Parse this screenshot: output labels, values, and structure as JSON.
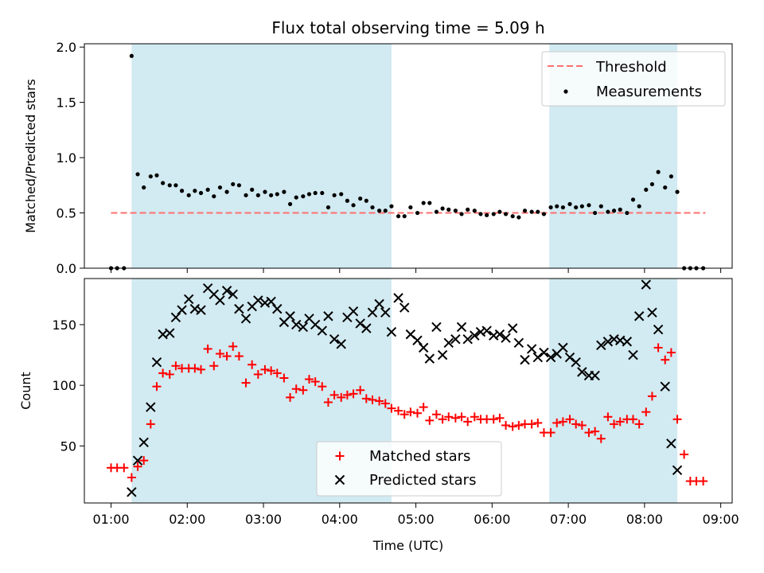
{
  "title": "Flux total observing time = 5.09 h",
  "x_axis": {
    "label": "Time (UTC)",
    "ticks": [
      "01:00",
      "02:00",
      "03:00",
      "04:00",
      "05:00",
      "06:00",
      "07:00",
      "08:00",
      "09:00"
    ],
    "range_hours": [
      0.65,
      9.15
    ]
  },
  "colors": {
    "shade": "#add8e6",
    "threshold": "#ff6f6f",
    "measurements": "#000000",
    "matched": "#ff0000",
    "predicted": "#000000"
  },
  "chart_data": [
    {
      "type": "scatter",
      "ylabel": "Matched/Predicted stars",
      "ylim": [
        0,
        2.03
      ],
      "yticks": [
        "0.0",
        "0.5",
        "1.0",
        "1.5",
        "2.0"
      ],
      "shaded_intervals_hours": [
        [
          1.27,
          4.68
        ],
        [
          6.75,
          8.43
        ]
      ],
      "threshold": {
        "name": "Threshold",
        "value": 0.5,
        "x_range_hours": [
          1.0,
          8.8
        ]
      },
      "legend": {
        "position": "top-right",
        "entries": [
          "Threshold",
          "Measurements"
        ]
      },
      "series": [
        {
          "name": "Measurements",
          "x_hours": [
            1.0,
            1.08,
            1.17,
            1.27,
            1.35,
            1.43,
            1.52,
            1.6,
            1.68,
            1.77,
            1.85,
            1.93,
            2.02,
            2.1,
            2.18,
            2.27,
            2.35,
            2.43,
            2.52,
            2.6,
            2.68,
            2.77,
            2.85,
            2.93,
            3.02,
            3.1,
            3.18,
            3.27,
            3.35,
            3.43,
            3.52,
            3.6,
            3.68,
            3.77,
            3.85,
            3.93,
            4.02,
            4.1,
            4.18,
            4.27,
            4.35,
            4.43,
            4.52,
            4.6,
            4.68,
            4.77,
            4.85,
            4.93,
            5.02,
            5.1,
            5.18,
            5.27,
            5.35,
            5.43,
            5.52,
            5.6,
            5.68,
            5.77,
            5.85,
            5.93,
            6.02,
            6.1,
            6.18,
            6.27,
            6.35,
            6.43,
            6.52,
            6.6,
            6.68,
            6.77,
            6.85,
            6.93,
            7.02,
            7.1,
            7.18,
            7.27,
            7.35,
            7.43,
            7.52,
            7.6,
            7.68,
            7.77,
            7.85,
            7.93,
            8.02,
            8.1,
            8.18,
            8.27,
            8.35,
            8.43,
            8.52,
            8.6,
            8.68,
            8.77
          ],
          "values": [
            0.0,
            0.0,
            0.0,
            1.92,
            0.85,
            0.73,
            0.83,
            0.84,
            0.77,
            0.75,
            0.75,
            0.7,
            0.66,
            0.7,
            0.68,
            0.71,
            0.65,
            0.73,
            0.69,
            0.76,
            0.75,
            0.66,
            0.71,
            0.66,
            0.69,
            0.66,
            0.67,
            0.69,
            0.58,
            0.64,
            0.65,
            0.67,
            0.68,
            0.68,
            0.55,
            0.66,
            0.67,
            0.61,
            0.57,
            0.63,
            0.61,
            0.55,
            0.52,
            0.52,
            0.56,
            0.47,
            0.47,
            0.55,
            0.5,
            0.59,
            0.59,
            0.51,
            0.54,
            0.53,
            0.52,
            0.49,
            0.53,
            0.52,
            0.49,
            0.48,
            0.49,
            0.51,
            0.49,
            0.47,
            0.46,
            0.52,
            0.51,
            0.51,
            0.49,
            0.55,
            0.56,
            0.55,
            0.58,
            0.55,
            0.56,
            0.57,
            0.5,
            0.56,
            0.51,
            0.52,
            0.53,
            0.5,
            0.62,
            0.56,
            0.71,
            0.76,
            0.87,
            0.73,
            0.83,
            0.69,
            0.0,
            0.0,
            0.0,
            0.0
          ]
        }
      ]
    },
    {
      "type": "scatter",
      "ylabel": "Count",
      "ylim": [
        3,
        188
      ],
      "yticks": [
        "50",
        "100",
        "150"
      ],
      "shaded_intervals_hours": [
        [
          1.27,
          4.68
        ],
        [
          6.75,
          8.43
        ]
      ],
      "legend": {
        "position": "lower-center",
        "entries": [
          "Matched stars",
          "Predicted stars"
        ]
      },
      "series": [
        {
          "name": "Matched stars",
          "marker": "plus",
          "x_hours": [
            1.0,
            1.08,
            1.17,
            1.27,
            1.35,
            1.43,
            1.52,
            1.6,
            1.68,
            1.77,
            1.85,
            1.93,
            2.02,
            2.1,
            2.18,
            2.27,
            2.35,
            2.43,
            2.52,
            2.6,
            2.68,
            2.77,
            2.85,
            2.93,
            3.02,
            3.1,
            3.18,
            3.27,
            3.35,
            3.43,
            3.52,
            3.6,
            3.68,
            3.77,
            3.85,
            3.93,
            4.02,
            4.1,
            4.18,
            4.27,
            4.35,
            4.43,
            4.52,
            4.6,
            4.68,
            4.77,
            4.85,
            4.93,
            5.02,
            5.1,
            5.18,
            5.27,
            5.35,
            5.43,
            5.52,
            5.6,
            5.68,
            5.77,
            5.85,
            5.93,
            6.02,
            6.1,
            6.18,
            6.27,
            6.35,
            6.43,
            6.52,
            6.6,
            6.68,
            6.77,
            6.85,
            6.93,
            7.02,
            7.1,
            7.18,
            7.27,
            7.35,
            7.43,
            7.52,
            7.6,
            7.68,
            7.77,
            7.85,
            7.93,
            8.02,
            8.1,
            8.18,
            8.27,
            8.35,
            8.43,
            8.52,
            8.6,
            8.68,
            8.77
          ],
          "values": [
            32,
            32,
            32,
            24,
            33,
            38,
            68,
            99,
            110,
            109,
            116,
            114,
            114,
            114,
            113,
            130,
            116,
            126,
            124,
            132,
            124,
            102,
            117,
            109,
            113,
            112,
            110,
            106,
            90,
            97,
            96,
            105,
            103,
            99,
            86,
            92,
            90,
            92,
            93,
            96,
            89,
            88,
            87,
            85,
            81,
            79,
            76,
            78,
            77,
            82,
            71,
            76,
            72,
            74,
            73,
            74,
            70,
            74,
            72,
            72,
            72,
            73,
            67,
            66,
            67,
            68,
            68,
            69,
            61,
            61,
            69,
            70,
            72,
            68,
            67,
            61,
            62,
            56,
            74,
            68,
            70,
            72,
            72,
            68,
            78,
            91,
            131,
            121,
            127,
            72,
            43,
            21,
            21,
            21
          ],
          "note_values": "counts"
        },
        {
          "name": "Predicted stars",
          "marker": "x",
          "x_hours": [
            1.27,
            1.35,
            1.43,
            1.52,
            1.6,
            1.68,
            1.77,
            1.85,
            1.93,
            2.02,
            2.1,
            2.18,
            2.27,
            2.35,
            2.43,
            2.52,
            2.6,
            2.68,
            2.77,
            2.85,
            2.93,
            3.02,
            3.1,
            3.18,
            3.27,
            3.35,
            3.43,
            3.52,
            3.6,
            3.68,
            3.77,
            3.85,
            3.93,
            4.02,
            4.1,
            4.18,
            4.27,
            4.35,
            4.43,
            4.52,
            4.6,
            4.68,
            4.77,
            4.85,
            4.93,
            5.02,
            5.1,
            5.18,
            5.27,
            5.35,
            5.43,
            5.52,
            5.6,
            5.68,
            5.77,
            5.85,
            5.93,
            6.02,
            6.1,
            6.18,
            6.27,
            6.35,
            6.43,
            6.52,
            6.6,
            6.68,
            6.77,
            6.85,
            6.93,
            7.02,
            7.1,
            7.18,
            7.27,
            7.35,
            7.43,
            7.52,
            7.6,
            7.68,
            7.77,
            7.85,
            7.93,
            8.02,
            8.1,
            8.18,
            8.27,
            8.35,
            8.43
          ],
          "values": [
            12,
            38,
            53,
            82,
            119,
            142,
            143,
            156,
            162,
            171,
            163,
            162,
            180,
            175,
            170,
            178,
            175,
            163,
            155,
            165,
            170,
            168,
            169,
            163,
            152,
            157,
            150,
            148,
            155,
            150,
            145,
            157,
            138,
            134,
            156,
            161,
            151,
            147,
            160,
            167,
            160,
            144,
            172,
            164,
            142,
            137,
            131,
            122,
            148,
            125,
            135,
            138,
            148,
            138,
            141,
            144,
            145,
            141,
            142,
            139,
            147,
            135,
            121,
            130,
            123,
            127,
            123,
            126,
            131,
            123,
            119,
            111,
            108,
            108,
            133,
            136,
            138,
            137,
            136,
            125,
            157,
            183,
            160,
            146,
            99,
            52,
            30
          ],
          "note_values": "counts"
        }
      ]
    }
  ]
}
